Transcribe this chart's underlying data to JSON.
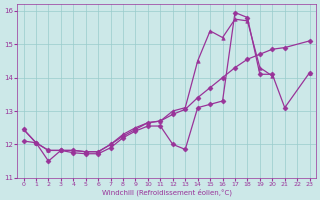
{
  "xlabel": "Windchill (Refroidissement éolien,°C)",
  "bg_color": "#cce8e8",
  "grid_color": "#99cccc",
  "line_color": "#993399",
  "xlim": [
    -0.5,
    23.5
  ],
  "ylim": [
    11,
    16.2
  ],
  "xticks": [
    0,
    1,
    2,
    3,
    4,
    5,
    6,
    7,
    8,
    9,
    10,
    11,
    12,
    13,
    14,
    15,
    16,
    17,
    18,
    19,
    20,
    21,
    22,
    23
  ],
  "yticks": [
    11,
    12,
    13,
    14,
    15,
    16
  ],
  "line1_x": [
    0,
    1,
    2,
    3,
    4,
    5,
    6,
    7,
    8,
    9,
    10,
    11,
    12,
    13,
    14,
    15,
    16,
    17,
    18,
    19,
    20,
    21,
    23
  ],
  "line1_y": [
    12.45,
    12.05,
    11.5,
    11.82,
    11.75,
    11.72,
    11.72,
    11.9,
    12.2,
    12.4,
    12.55,
    12.55,
    12.0,
    11.85,
    13.1,
    13.2,
    13.3,
    15.95,
    15.8,
    14.1,
    14.1,
    13.1,
    14.15
  ],
  "line2_x": [
    0,
    1,
    2,
    3,
    4,
    5,
    6,
    7,
    8,
    9,
    10,
    11,
    12,
    13,
    14,
    15,
    16,
    17,
    18,
    19,
    20,
    21,
    23
  ],
  "line2_y": [
    12.1,
    12.05,
    11.82,
    11.82,
    11.82,
    11.78,
    11.78,
    12.0,
    12.25,
    12.45,
    12.65,
    12.7,
    12.9,
    13.05,
    13.4,
    13.7,
    14.0,
    14.3,
    14.55,
    14.7,
    14.85,
    14.9,
    15.1
  ],
  "line3_x": [
    0,
    1,
    2,
    3,
    4,
    5,
    6,
    7,
    8,
    9,
    10,
    11,
    12,
    13,
    14,
    15,
    16,
    17,
    18,
    19,
    20,
    21,
    23
  ],
  "line3_y": [
    12.45,
    12.05,
    11.82,
    11.82,
    11.82,
    11.78,
    11.78,
    12.0,
    12.3,
    12.5,
    12.65,
    12.7,
    13.0,
    13.1,
    14.5,
    15.4,
    15.2,
    15.75,
    15.7,
    14.3,
    14.05,
    null,
    14.15
  ],
  "marker1": "D",
  "marker2": "D",
  "marker3": "^"
}
